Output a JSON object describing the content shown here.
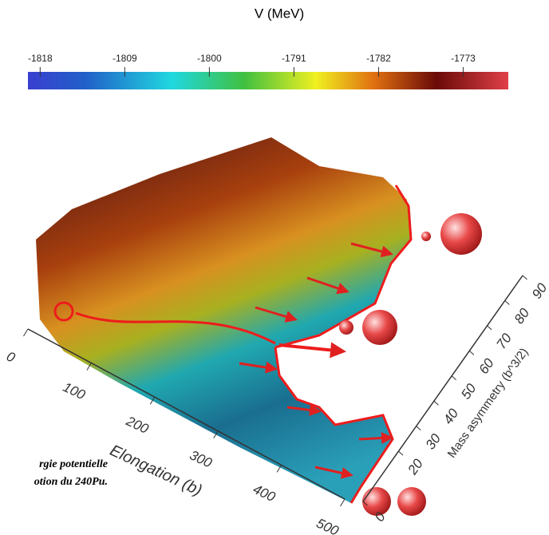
{
  "colorbar": {
    "title": "V (MeV)",
    "lim": [
      -1819.3,
      -1768.2
    ],
    "ticks": [
      -1818,
      -1809,
      -1800,
      -1791,
      -1782,
      -1773
    ]
  },
  "x_axis": {
    "label": "Elongation (b)",
    "lim": [
      0,
      500
    ],
    "ticks": [
      0,
      100,
      200,
      300,
      400,
      500
    ]
  },
  "y_axis": {
    "label": "Mass asymmetry (b^3/2)",
    "lim": [
      0,
      90
    ],
    "ticks": [
      0,
      20,
      30,
      40,
      50,
      60,
      70,
      80,
      90
    ]
  },
  "caption": {
    "line1": "rgie potentielle",
    "line2": "otion du 240Pu."
  }
}
